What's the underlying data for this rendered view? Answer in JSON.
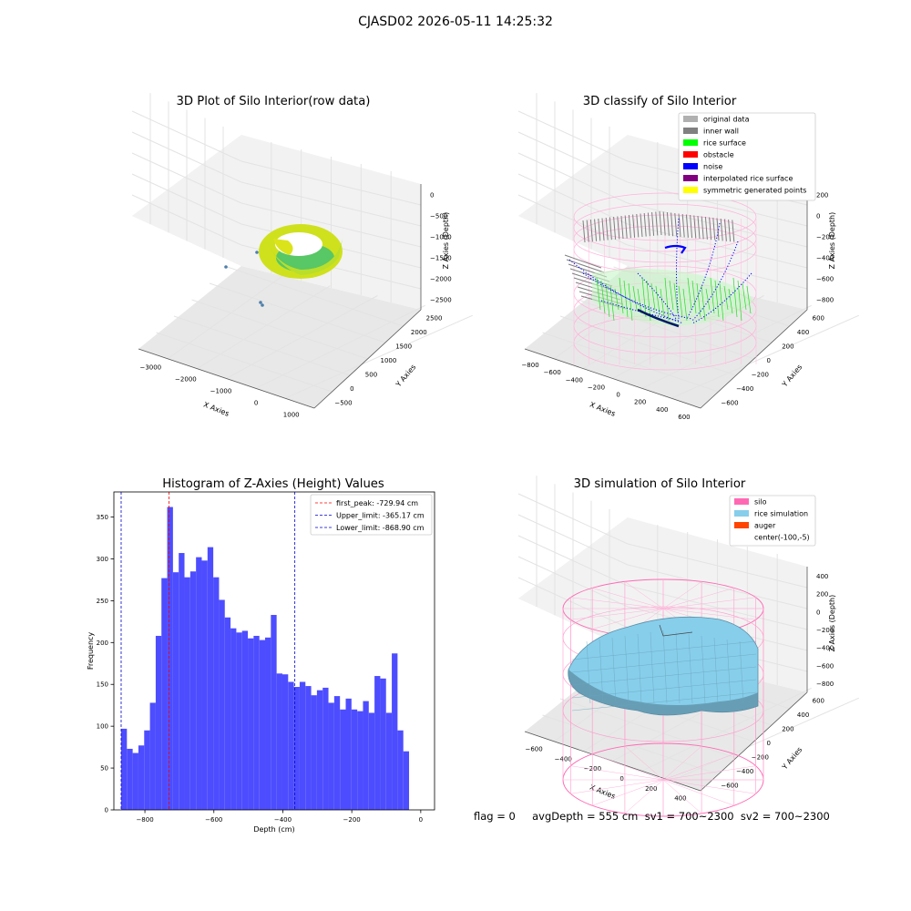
{
  "figure": {
    "suptitle": "CJASD02 2026-05-11 14:25:32",
    "status_line": "flag = 0     avgDepth = 555 cm  sv1 = 700~2300  sv2 = 700~2300"
  },
  "colors": {
    "histogram_bar": "#4d4dff",
    "first_peak_line": "#ff0000",
    "limit_lines": "#0000cc",
    "silo_wire": "#ff69b4",
    "rice_sim": "#87ceeb",
    "pane": "#f2f2f2",
    "grid": "#e3e3e3"
  },
  "chart_data": [
    {
      "type": "scatter",
      "subtype": "3d",
      "title": "3D Plot of Silo Interior(row data)",
      "xlabel": "X Axies",
      "ylabel": "Y Axies",
      "zlabel": "Z Axies (Depth)",
      "x_ticks": [
        "−3000",
        "−2000",
        "−1000",
        "0",
        "1000"
      ],
      "y_ticks": [
        "−500",
        "0",
        "500",
        "1000",
        "1500",
        "2000",
        "2500"
      ],
      "z_ticks": [
        "0",
        "−500",
        "−1000",
        "−1500",
        "−2000",
        "−2500"
      ],
      "xlim": [
        -3500,
        1000
      ],
      "ylim": [
        -700,
        2600
      ],
      "zlim": [
        -2800,
        100
      ],
      "colormap": "viridis",
      "points_outliers": [
        {
          "x": -3300,
          "y": 1400,
          "z": -1500
        },
        {
          "x": -2400,
          "y": 600,
          "z": -2300
        },
        {
          "x": -2350,
          "y": 550,
          "z": -2350
        }
      ],
      "grid": true
    },
    {
      "type": "scatter",
      "subtype": "3d",
      "title": "3D classify of Silo Interior",
      "xlabel": "X Axies",
      "ylabel": "Y Axies",
      "zlabel": "Z Axies (Depth)",
      "x_ticks": [
        "−800",
        "−600",
        "−400",
        "−200",
        "0",
        "200",
        "400",
        "600"
      ],
      "y_ticks": [
        "−600",
        "−400",
        "−200",
        "0",
        "200",
        "400",
        "600"
      ],
      "z_ticks": [
        "200",
        "0",
        "−200",
        "−400",
        "−600",
        "−800"
      ],
      "legend_position": "top-right",
      "legend": [
        {
          "label": "original data",
          "color": "#b0b0b0"
        },
        {
          "label": "inner wall",
          "color": "#808080"
        },
        {
          "label": "rice surface",
          "color": "#00ff00"
        },
        {
          "label": "obstacle",
          "color": "#ff0000"
        },
        {
          "label": "noise",
          "color": "#0000ff"
        },
        {
          "label": "interpolated rice surface",
          "color": "#800080"
        },
        {
          "label": "symmetric generated points",
          "color": "#ffff00"
        }
      ],
      "grid": true
    },
    {
      "type": "bar",
      "subtype": "histogram",
      "title": "Histogram of Z-Axies (Height) Values",
      "xlabel": "Depth (cm)",
      "ylabel": "Frequency",
      "xlim": [
        -890,
        40
      ],
      "ylim": [
        0,
        380
      ],
      "x_ticks": [
        -800,
        -600,
        -400,
        -200,
        0
      ],
      "x_tick_labels": [
        "−800",
        "−600",
        "−400",
        "−200",
        "0"
      ],
      "y_ticks": [
        0,
        50,
        100,
        150,
        200,
        250,
        300,
        350
      ],
      "bin_start": -868.9,
      "bin_width": 16.7,
      "values": [
        97,
        73,
        68,
        77,
        95,
        128,
        208,
        277,
        362,
        284,
        307,
        278,
        285,
        302,
        298,
        314,
        278,
        251,
        230,
        217,
        212,
        214,
        205,
        208,
        203,
        206,
        233,
        163,
        162,
        153,
        147,
        153,
        148,
        137,
        143,
        146,
        128,
        136,
        120,
        133,
        120,
        118,
        130,
        116,
        160,
        157,
        116,
        187,
        95,
        70
      ],
      "reference_lines": [
        {
          "name": "first_peak",
          "value": -729.94,
          "label": "first_peak: -729.94 cm"
        },
        {
          "name": "Upper_limit",
          "value": -365.17,
          "label": "Upper_limit: -365.17 cm"
        },
        {
          "name": "Lower_limit",
          "value": -868.9,
          "label": "Lower_limit: -868.90 cm"
        }
      ],
      "legend_position": "top-right",
      "grid": false
    },
    {
      "type": "area",
      "subtype": "3d-surface",
      "title": "3D simulation of Silo Interior",
      "xlabel": "X Axies",
      "ylabel": "Y Axies",
      "zlabel": "Z Axies (Depth)",
      "x_ticks": [
        "−600",
        "−400",
        "−200",
        "0",
        "200",
        "400"
      ],
      "y_ticks": [
        "−600",
        "−400",
        "−200",
        "0",
        "200",
        "400",
        "600"
      ],
      "z_ticks": [
        "400",
        "200",
        "0",
        "−200",
        "−400",
        "−600",
        "−800"
      ],
      "legend_position": "top-right",
      "legend": [
        {
          "label": "silo",
          "color": "#ff69b4"
        },
        {
          "label": "rice simulation",
          "color": "#87ceeb"
        },
        {
          "label": "auger",
          "color": "#ff4500"
        },
        {
          "label": "center(-100,-5)",
          "color": ""
        }
      ],
      "grid": true
    }
  ]
}
